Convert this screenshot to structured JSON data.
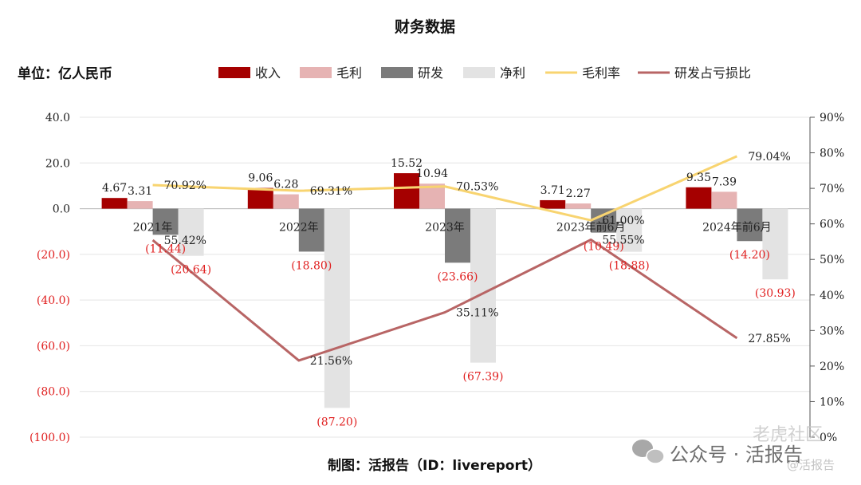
{
  "chart_data": {
    "type": "bar",
    "title": "财务数据",
    "unit_label": "单位：亿人民币",
    "categories": [
      "2021年",
      "2022年",
      "2023年",
      "2023年前6月",
      "2024年前6月"
    ],
    "series": [
      {
        "name": "收入",
        "kind": "bar",
        "axis": "left",
        "color": "#a50000",
        "values": [
          4.67,
          9.06,
          15.52,
          3.71,
          9.35
        ],
        "labels": [
          "4.67",
          "9.06",
          "15.52",
          "3.71",
          "9.35"
        ]
      },
      {
        "name": "毛利",
        "kind": "bar",
        "axis": "left",
        "color": "#e6b3b3",
        "values": [
          3.31,
          6.28,
          10.94,
          2.27,
          7.39
        ],
        "labels": [
          "3.31",
          "6.28",
          "10.94",
          "2.27",
          "7.39"
        ]
      },
      {
        "name": "研发",
        "kind": "bar",
        "axis": "left",
        "color": "#7b7b7b",
        "values": [
          -11.44,
          -18.8,
          -23.66,
          -10.49,
          -14.2
        ],
        "labels": [
          "(11.44)",
          "(18.80)",
          "(23.66)",
          "(10.49)",
          "(14.20)"
        ]
      },
      {
        "name": "净利",
        "kind": "bar",
        "axis": "left",
        "color": "#e3e3e3",
        "values": [
          -20.64,
          -87.2,
          -67.39,
          -18.88,
          -30.93
        ],
        "labels": [
          "(20.64)",
          "(87.20)",
          "(67.39)",
          "(18.88)",
          "(30.93)"
        ]
      },
      {
        "name": "毛利率",
        "kind": "line",
        "axis": "right",
        "color": "#f8d470",
        "values": [
          70.92,
          69.31,
          70.53,
          61.0,
          79.04
        ],
        "labels": [
          "70.92%",
          "69.31%",
          "70.53%",
          "61.00%",
          "79.04%"
        ]
      },
      {
        "name": "研发占亏损比",
        "kind": "line",
        "axis": "right",
        "color": "#b86565",
        "values": [
          55.42,
          21.56,
          35.11,
          55.55,
          27.85
        ],
        "labels": [
          "55.42%",
          "21.56%",
          "35.11%",
          "55.55%",
          "27.85%"
        ]
      }
    ],
    "left_axis": {
      "ylim": [
        -100,
        40
      ],
      "ticks": [
        40,
        20,
        0,
        -20,
        -40,
        -60,
        -80,
        -100
      ],
      "tick_labels": [
        "40.0",
        "20.0",
        "0.0",
        "(20.0)",
        "(40.0)",
        "(60.0)",
        "(80.0)",
        "(100.0)"
      ],
      "positive_color": "#222222",
      "negative_color": "#e02020"
    },
    "right_axis": {
      "ylim": [
        0,
        90
      ],
      "ticks": [
        90,
        80,
        70,
        60,
        50,
        40,
        30,
        20,
        10,
        0
      ],
      "tick_labels": [
        "90%",
        "80%",
        "70%",
        "60%",
        "50%",
        "40%",
        "30%",
        "20%",
        "10%",
        "0%"
      ]
    },
    "grid": true,
    "legend_position": "top",
    "negative_label_color": "#e02020"
  },
  "credit": "制图：活报告（ID：livereport）",
  "watermark": {
    "wechat": "公众号 · 活报告",
    "community": "老虎社区",
    "handle": "@活报告"
  }
}
